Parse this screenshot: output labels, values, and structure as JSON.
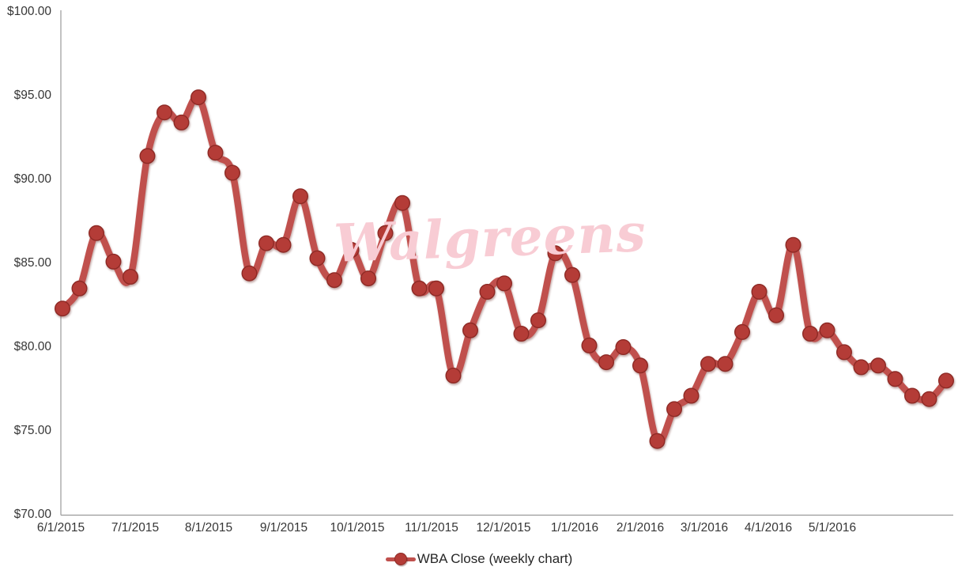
{
  "chart_data": {
    "type": "line",
    "title": "",
    "xlabel": "",
    "ylabel": "",
    "smoothed": true,
    "grid": "off",
    "legend_position": "bottom",
    "ylim": [
      70,
      100
    ],
    "y_tick_step": 5,
    "y_tick_labels": [
      "$100.00",
      "$95.00",
      "$90.00",
      "$85.00",
      "$80.00",
      "$75.00",
      "$70.00"
    ],
    "x_tick_labels": [
      "6/1/2015",
      "7/1/2015",
      "8/1/2015",
      "9/1/2015",
      "10/1/2015",
      "11/1/2015",
      "12/1/2015",
      "1/1/2016",
      "2/1/2016",
      "3/1/2016",
      "4/1/2016",
      "5/1/2016"
    ],
    "categories": [
      "6/1/2015",
      "6/8/2015",
      "6/15/2015",
      "6/22/2015",
      "6/29/2015",
      "7/6/2015",
      "7/13/2015",
      "7/20/2015",
      "7/27/2015",
      "8/3/2015",
      "8/10/2015",
      "8/17/2015",
      "8/24/2015",
      "8/31/2015",
      "9/7/2015",
      "9/14/2015",
      "9/21/2015",
      "9/28/2015",
      "10/5/2015",
      "10/12/2015",
      "10/19/2015",
      "10/26/2015",
      "11/2/2015",
      "11/9/2015",
      "11/16/2015",
      "11/23/2015",
      "11/30/2015",
      "12/7/2015",
      "12/14/2015",
      "12/21/2015",
      "12/28/2015",
      "1/4/2016",
      "1/11/2016",
      "1/18/2016",
      "1/25/2016",
      "2/1/2016",
      "2/8/2016",
      "2/15/2016",
      "2/22/2016",
      "2/29/2016",
      "3/7/2016",
      "3/14/2016",
      "3/21/2016",
      "3/28/2016",
      "4/4/2016",
      "4/11/2016",
      "4/18/2016",
      "4/25/2016",
      "5/2/2016",
      "5/9/2016",
      "5/16/2016",
      "5/23/2016",
      "5/30/2016"
    ],
    "series": [
      {
        "name": "WBA Close (weekly chart)",
        "values": [
          82.3,
          83.5,
          86.8,
          85.1,
          84.2,
          91.4,
          94.0,
          93.4,
          94.9,
          91.6,
          90.4,
          84.4,
          86.2,
          86.1,
          89.0,
          85.3,
          84.0,
          85.8,
          84.1,
          86.8,
          88.6,
          83.5,
          83.5,
          78.3,
          81.0,
          83.3,
          83.8,
          80.8,
          81.6,
          85.6,
          84.3,
          80.1,
          79.1,
          80.0,
          78.9,
          74.4,
          76.3,
          77.1,
          79.0,
          79.0,
          80.9,
          83.3,
          81.9,
          86.1,
          80.8,
          81.0,
          79.7,
          78.8,
          78.9,
          78.1,
          77.1,
          76.9,
          78.0
        ]
      }
    ],
    "line_color": "#C0504D",
    "marker_fill": "#B43C37",
    "marker_stroke": "#8E2A25",
    "axis_line_color": "#9A9A9A",
    "tick_label_color": "#363636"
  },
  "legend": {
    "label": "WBA Close (weekly chart)"
  },
  "watermark": {
    "text": "Walgreens",
    "color": "#F8CCD4"
  }
}
